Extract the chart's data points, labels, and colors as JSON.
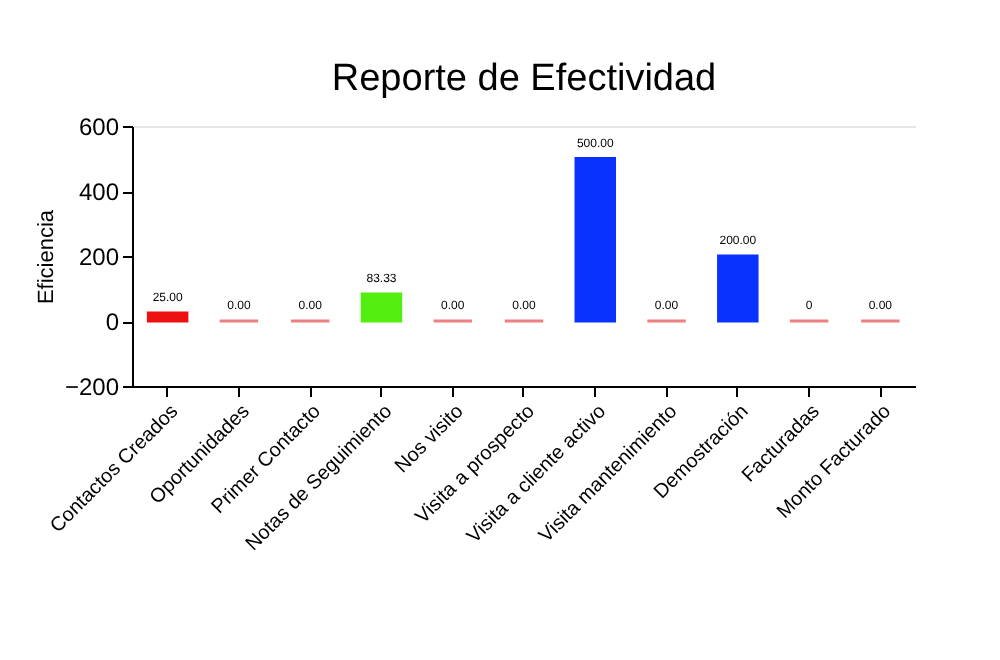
{
  "chart_data": {
    "type": "bar",
    "title": "Reporte de Efectividad",
    "ylabel": "Eficiencia",
    "categories": [
      "Contactos Creados",
      "Oportunidades",
      "Primer Contacto",
      "Notas de Seguimiento",
      "Nos visito",
      "Visita a prospecto",
      "Visita a cliente activo",
      "Visita mantenimiento",
      "Demostración",
      "Facturadas",
      "Monto Facturado"
    ],
    "values": [
      25,
      0,
      0,
      83.33,
      0,
      0,
      500,
      0,
      200,
      0,
      0
    ],
    "value_labels": [
      "25.00",
      "0.00",
      "0.00",
      "83.33",
      "0.00",
      "0.00",
      "500.00",
      "0.00",
      "200.00",
      "0",
      "0.00"
    ],
    "colors": [
      "#ee1111",
      "#f08080",
      "#f08080",
      "#55ee11",
      "#f08080",
      "#f08080",
      "#0a32ff",
      "#f08080",
      "#0a32ff",
      "#f08080",
      "#f08080"
    ],
    "ylim": [
      -200,
      600
    ],
    "yticks": [
      -200,
      0,
      200,
      400,
      600
    ],
    "grid": false
  }
}
